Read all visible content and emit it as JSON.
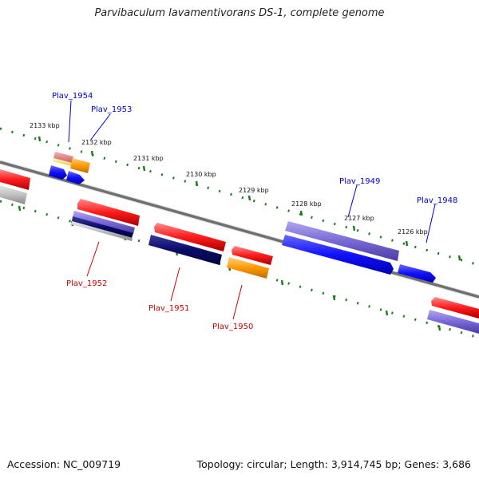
{
  "title": "Parvibaculum lavamentivorans DS-1, complete genome",
  "footer": {
    "accession": "Accession: NC_009719",
    "topology": "Topology: circular; Length: 3,914,745 bp; Genes: 3,686"
  },
  "kbp_labels": [
    "2133 kbp",
    "2132 kbp",
    "2131 kbp",
    "2130 kbp",
    "2129 kbp",
    "2128 kbp",
    "2127 kbp",
    "2126 kbp"
  ],
  "gene_labels": {
    "top": [
      "Plav_1954",
      "Plav_1953",
      "Plav_1949",
      "Plav_1948"
    ],
    "bottom": [
      "Plav_1952",
      "Plav_1951",
      "Plav_1950"
    ]
  },
  "colors": {
    "forward_label": "#0000cc",
    "reverse_label": "#cc0000",
    "backbone": "#777777",
    "tick": "#1e7a1e",
    "red": "#ee1111",
    "blue": "#1a1aff",
    "navy": "#0a0a66",
    "purple": "#7a6ad8",
    "orange": "#ff9900",
    "gray": "#b8b8b8",
    "pink": "#e87a7a"
  }
}
